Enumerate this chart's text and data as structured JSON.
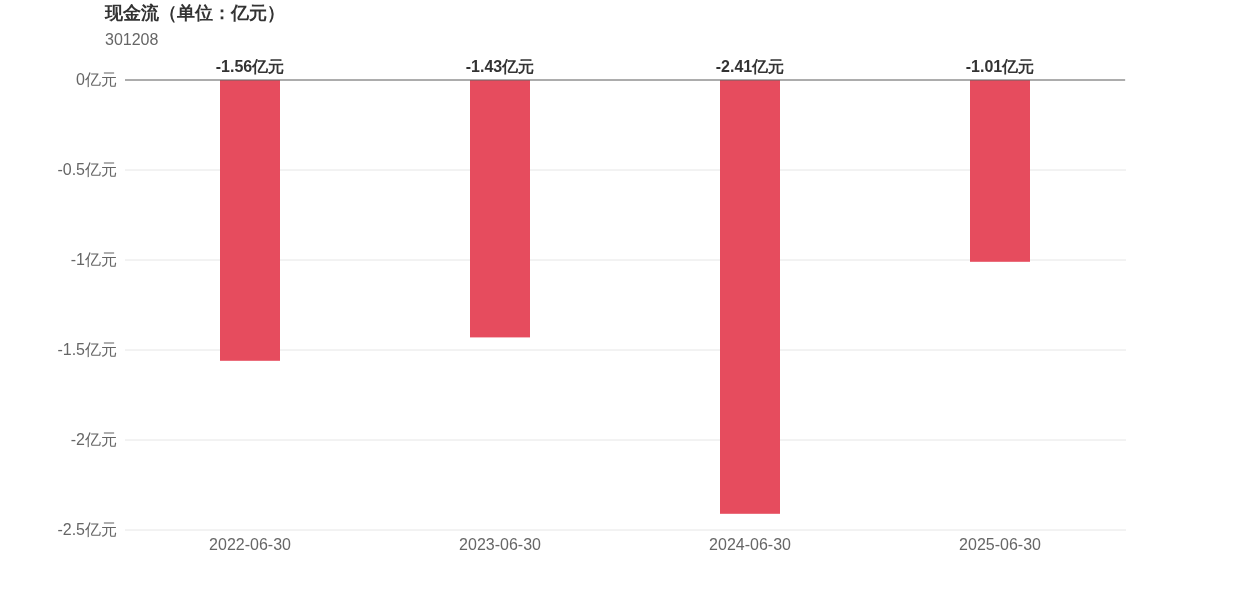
{
  "chart_data": {
    "type": "bar",
    "title": "现金流（单位：亿元）",
    "subtitle": "301208",
    "categories": [
      "2022-06-30",
      "2023-06-30",
      "2024-06-30",
      "2025-06-30"
    ],
    "values": [
      -1.56,
      -1.43,
      -2.41,
      -1.01
    ],
    "value_labels": [
      "-1.56亿元",
      "-1.43亿元",
      "-2.41亿元",
      "-1.01亿元"
    ],
    "color": "#e64c5e",
    "ylim": [
      -2.5,
      0
    ],
    "yticks": [
      {
        "value": 0,
        "label": "0亿元"
      },
      {
        "value": -0.5,
        "label": "-0.5亿元"
      },
      {
        "value": -1,
        "label": "-1亿元"
      },
      {
        "value": -1.5,
        "label": "-1.5亿元"
      },
      {
        "value": -2,
        "label": "-2亿元"
      },
      {
        "value": -2.5,
        "label": "-2.5亿元"
      }
    ],
    "grid": "y"
  }
}
